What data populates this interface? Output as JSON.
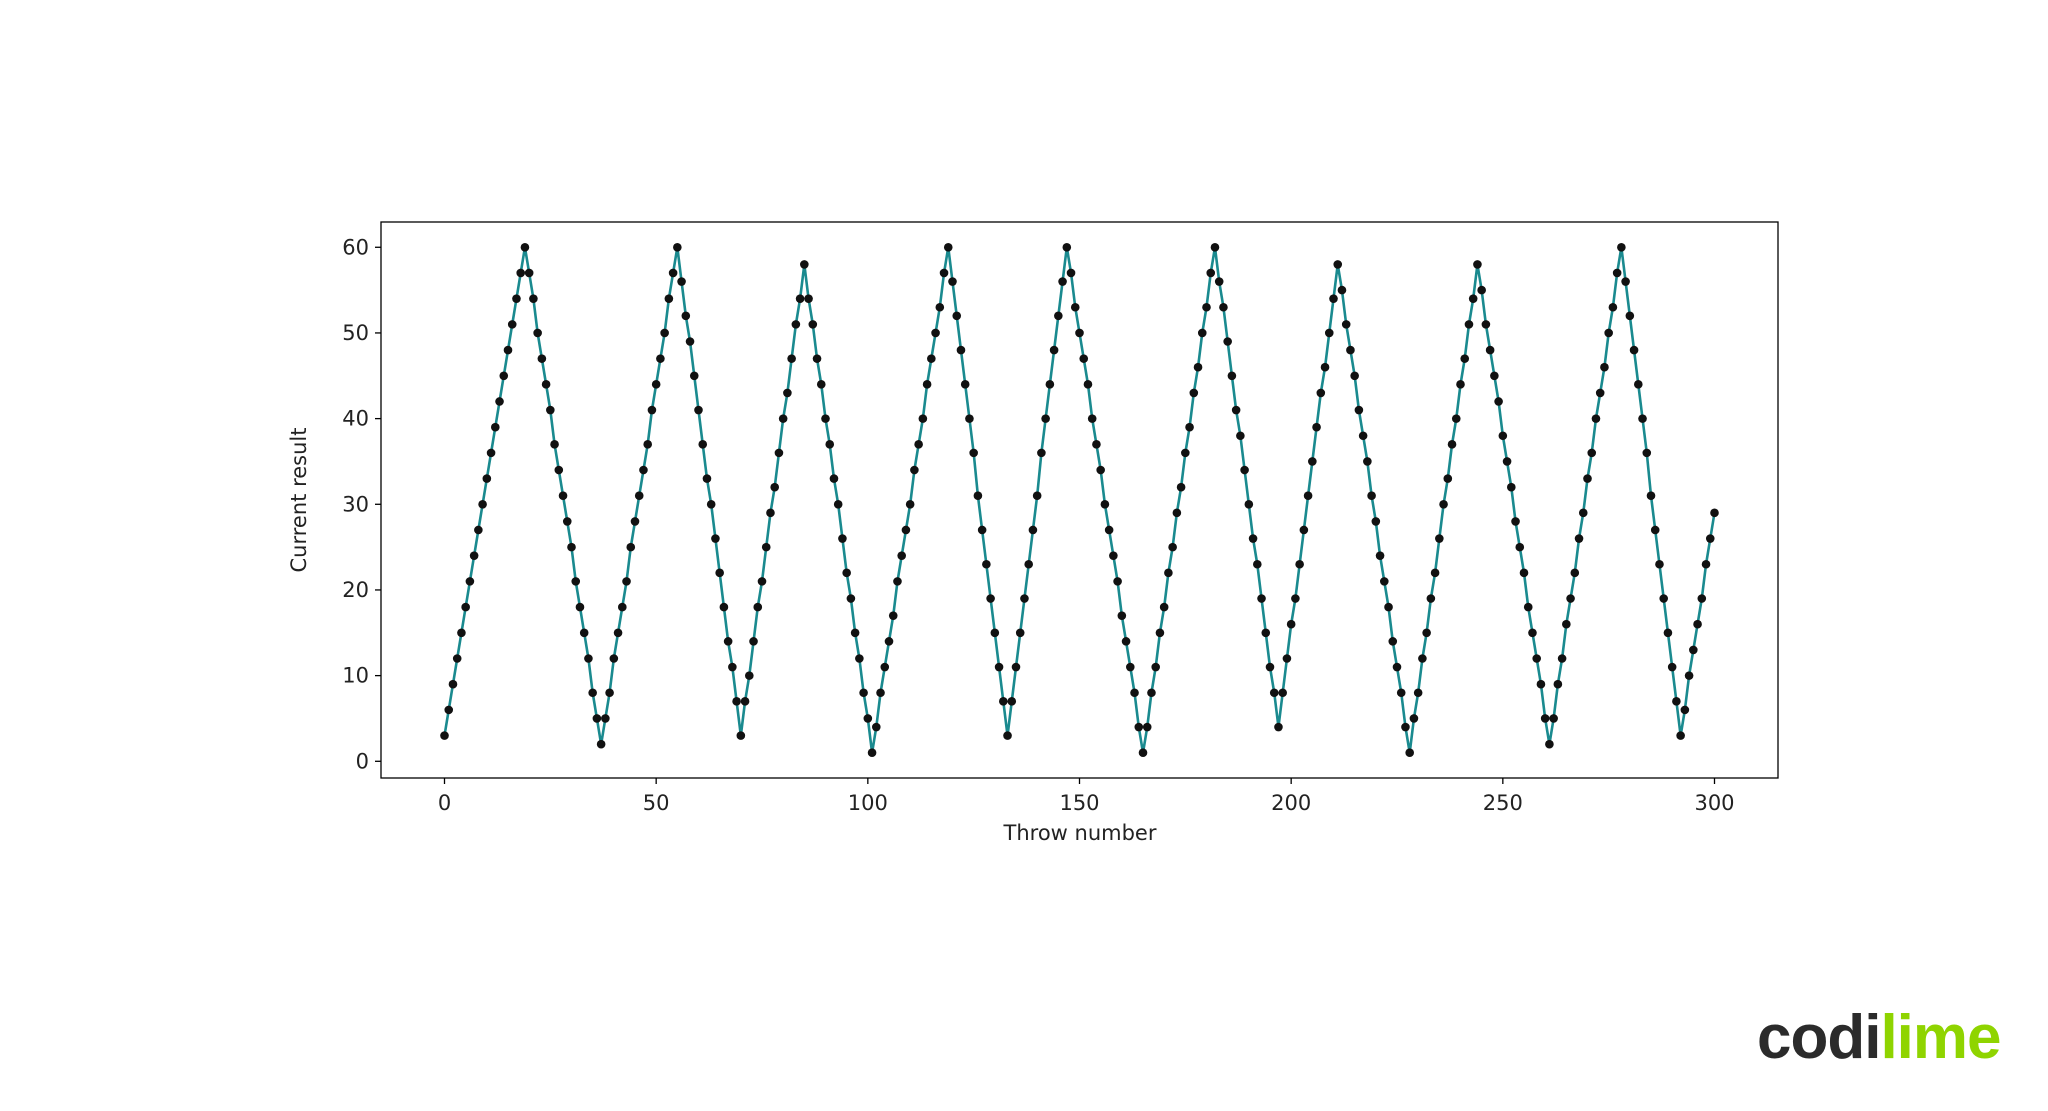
{
  "chart_data": {
    "type": "line",
    "xlabel": "Throw number",
    "ylabel": "Current result",
    "x": [
      0,
      1,
      2,
      3,
      4,
      5,
      6,
      7,
      8,
      9,
      10,
      11,
      12,
      13,
      14,
      15,
      16,
      17,
      18,
      19,
      20,
      21,
      22,
      23,
      24,
      25,
      26,
      27,
      28,
      29,
      30,
      31,
      32,
      33,
      34,
      35,
      36,
      37,
      38,
      39,
      40,
      41,
      42,
      43,
      44,
      45,
      46,
      47,
      48,
      49,
      50,
      51,
      52,
      53,
      54,
      55,
      56,
      57,
      58,
      59,
      60,
      61,
      62,
      63,
      64,
      65,
      66,
      67,
      68,
      69,
      70,
      71,
      72,
      73,
      74,
      75,
      76,
      77,
      78,
      79,
      80,
      81,
      82,
      83,
      84,
      85,
      86,
      87,
      88,
      89,
      90,
      91,
      92,
      93,
      94,
      95,
      96,
      97,
      98,
      99,
      100,
      101,
      102,
      103,
      104,
      105,
      106,
      107,
      108,
      109,
      110,
      111,
      112,
      113,
      114,
      115,
      116,
      117,
      118,
      119,
      120,
      121,
      122,
      123,
      124,
      125,
      126,
      127,
      128,
      129,
      130,
      131,
      132,
      133,
      134,
      135,
      136,
      137,
      138,
      139,
      140,
      141,
      142,
      143,
      144,
      145,
      146,
      147,
      148,
      149,
      150,
      151,
      152,
      153,
      154,
      155,
      156,
      157,
      158,
      159,
      160,
      161,
      162,
      163,
      164,
      165,
      166,
      167,
      168,
      169,
      170,
      171,
      172,
      173,
      174,
      175,
      176,
      177,
      178,
      179,
      180,
      181,
      182,
      183,
      184,
      185,
      186,
      187,
      188,
      189,
      190,
      191,
      192,
      193,
      194,
      195,
      196,
      197,
      198,
      199,
      200,
      201,
      202,
      203,
      204,
      205,
      206,
      207,
      208,
      209,
      210,
      211,
      212,
      213,
      214,
      215,
      216,
      217,
      218,
      219,
      220,
      221,
      222,
      223,
      224,
      225,
      226,
      227,
      228,
      229,
      230,
      231,
      232,
      233,
      234,
      235,
      236,
      237,
      238,
      239,
      240,
      241,
      242,
      243,
      244,
      245,
      246,
      247,
      248,
      249,
      250,
      251,
      252,
      253,
      254,
      255,
      256,
      257,
      258,
      259,
      260,
      261,
      262,
      263,
      264,
      265,
      266,
      267,
      268,
      269,
      270,
      271,
      272,
      273,
      274,
      275,
      276,
      277,
      278,
      279,
      280,
      281,
      282,
      283,
      284,
      285,
      286,
      287,
      288,
      289,
      290,
      291,
      292,
      293,
      294,
      295,
      296,
      297,
      298,
      299,
      300
    ],
    "series": [
      {
        "color": "#1a8a8f",
        "marker_color": "#111111",
        "values": [
          3,
          6,
          9,
          12,
          15,
          18,
          21,
          24,
          27,
          30,
          33,
          36,
          39,
          42,
          45,
          48,
          51,
          54,
          57,
          60,
          57,
          54,
          50,
          47,
          44,
          41,
          37,
          34,
          31,
          28,
          25,
          21,
          18,
          15,
          12,
          8,
          5,
          2,
          5,
          8,
          12,
          15,
          18,
          21,
          25,
          28,
          31,
          34,
          37,
          41,
          44,
          47,
          50,
          54,
          57,
          60,
          56,
          52,
          49,
          45,
          41,
          37,
          33,
          30,
          26,
          22,
          18,
          14,
          11,
          7,
          3,
          7,
          10,
          14,
          18,
          21,
          25,
          29,
          32,
          36,
          40,
          43,
          47,
          51,
          54,
          58,
          54,
          51,
          47,
          44,
          40,
          37,
          33,
          30,
          26,
          22,
          19,
          15,
          12,
          8,
          5,
          1,
          4,
          8,
          11,
          14,
          17,
          21,
          24,
          27,
          30,
          34,
          37,
          40,
          44,
          47,
          50,
          53,
          57,
          60,
          56,
          52,
          48,
          44,
          40,
          36,
          31,
          27,
          23,
          19,
          15,
          11,
          7,
          3,
          7,
          11,
          15,
          19,
          23,
          27,
          31,
          36,
          40,
          44,
          48,
          52,
          56,
          60,
          57,
          53,
          50,
          47,
          44,
          40,
          37,
          34,
          30,
          27,
          24,
          21,
          17,
          14,
          11,
          8,
          4,
          1,
          4,
          8,
          11,
          15,
          18,
          22,
          25,
          29,
          32,
          36,
          39,
          43,
          46,
          50,
          53,
          57,
          60,
          56,
          53,
          49,
          45,
          41,
          38,
          34,
          30,
          26,
          23,
          19,
          15,
          11,
          8,
          4,
          8,
          12,
          16,
          19,
          23,
          27,
          31,
          35,
          39,
          43,
          46,
          50,
          54,
          58,
          55,
          51,
          48,
          45,
          41,
          38,
          35,
          31,
          28,
          24,
          21,
          18,
          14,
          11,
          8,
          4,
          1,
          5,
          8,
          12,
          15,
          19,
          22,
          26,
          30,
          33,
          37,
          40,
          44,
          47,
          51,
          54,
          58,
          55,
          51,
          48,
          45,
          42,
          38,
          35,
          32,
          28,
          25,
          22,
          18,
          15,
          12,
          9,
          5,
          2,
          5,
          9,
          12,
          16,
          19,
          22,
          26,
          29,
          33,
          36,
          40,
          43,
          46,
          50,
          53,
          57,
          60,
          56,
          52,
          48,
          44,
          40,
          36,
          31,
          27,
          23,
          19,
          15,
          11,
          7,
          3,
          6,
          10,
          13,
          16,
          19,
          23,
          26,
          29
        ]
      }
    ],
    "xlim": [
      -15,
      315
    ],
    "xticks": [
      0,
      50,
      100,
      150,
      200,
      250,
      300
    ],
    "ylim": [
      -1.95,
      62.95
    ],
    "yticks": [
      0,
      10,
      20,
      30,
      40,
      50,
      60
    ]
  },
  "logo": {
    "dark": "codi",
    "green": "lime"
  }
}
